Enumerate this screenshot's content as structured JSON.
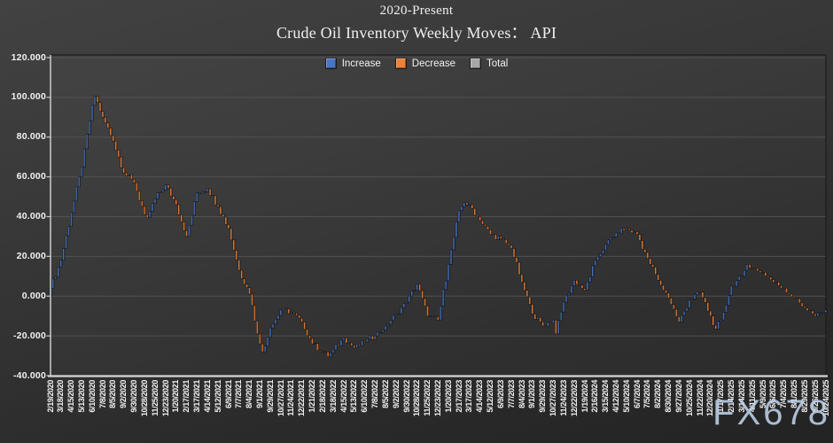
{
  "watermark": {
    "text": "FX678",
    "color": "#bed2ea"
  },
  "chart_data": {
    "type": "waterfall",
    "title": "2020-Present",
    "subtitle": "Crude Oil Inventory Weekly Moves： API",
    "legend": [
      {
        "name": "increase",
        "label": "Increase",
        "color": "#4472c4"
      },
      {
        "name": "decrease",
        "label": "Decrease",
        "color": "#ed7d31"
      },
      {
        "name": "total",
        "label": "Total",
        "color": "#a5a5a5"
      }
    ],
    "bar_colors": {
      "increase": "#4472c4",
      "decrease": "#ed7d31"
    },
    "y_axis": {
      "min": -40,
      "max": 120,
      "step": 20,
      "tick_labels": [
        "120.000",
        "100.000",
        "80.000",
        "60.000",
        "40.000",
        "20.000",
        "0.000",
        "-20.000",
        "-40.000"
      ],
      "grid": true
    },
    "x_axis_note": "weekly waterfall bars; one tick label every 4 weeks",
    "weeks_between_labels": 4,
    "baseline": 0,
    "x_tick_labels": [
      "2/19/2020",
      "3/18/2020",
      "4/15/2020",
      "5/13/2020",
      "6/10/2020",
      "7/8/2020",
      "8/5/2020",
      "9/2/2020",
      "9/30/2020",
      "10/28/2020",
      "11/25/2020",
      "12/23/2020",
      "1/20/2021",
      "2/17/2021",
      "3/17/2021",
      "4/14/2021",
      "5/12/2021",
      "6/9/2021",
      "7/7/2021",
      "8/4/2021",
      "9/1/2021",
      "9/29/2021",
      "10/27/2021",
      "11/24/2021",
      "12/22/2021",
      "1/21/2022",
      "2/18/2022",
      "3/18/2022",
      "4/15/2022",
      "5/13/2022",
      "6/10/2022",
      "7/8/2022",
      "8/5/2022",
      "9/2/2022",
      "9/30/2022",
      "10/28/2022",
      "11/25/2022",
      "12/23/2022",
      "1/20/2023",
      "2/17/2023",
      "3/17/2023",
      "4/14/2023",
      "5/12/2023",
      "6/9/2023",
      "7/7/2023",
      "8/4/2023",
      "9/1/2023",
      "9/29/2023",
      "10/27/2023",
      "11/24/2023",
      "12/22/2023",
      "1/19/2024",
      "2/16/2024",
      "3/15/2024",
      "4/12/2024",
      "5/10/2024",
      "6/7/2024",
      "7/5/2024",
      "8/2/2024",
      "8/30/2024",
      "9/27/2024",
      "10/25/2024",
      "11/22/2024",
      "12/20/2024",
      "1/17/2025",
      "2/14/2025",
      "3/14/2025",
      "4/11/2025",
      "5/9/2025",
      "6/6/2025",
      "7/4/2025",
      "8/1/2025",
      "8/29/2025",
      "9/26/2025",
      "10/24/2025"
    ],
    "cumulative_at_ticks": [
      4,
      18,
      42,
      65,
      96,
      90,
      78,
      62,
      57,
      41,
      49,
      56,
      46,
      30,
      52,
      54,
      45,
      34,
      13,
      1,
      -24,
      -16,
      -7,
      -8,
      -13,
      -24,
      -28,
      -27,
      -21,
      -26,
      -23,
      -20,
      -15,
      -9,
      -3,
      6,
      -10,
      -12,
      16,
      43,
      46,
      38,
      31,
      29,
      24,
      7,
      -9,
      -15,
      -12,
      -3,
      8,
      3,
      18,
      26,
      32,
      34,
      31,
      19,
      8,
      -1,
      -13,
      -2,
      2,
      -10,
      -12,
      5,
      10,
      14,
      12,
      7,
      4,
      -1,
      -6,
      -10,
      -7
    ],
    "notable_extremes": [
      {
        "week": 17,
        "near": "6/17/2020",
        "value": 100.5
      },
      {
        "week": 37,
        "near": "11/4/2020",
        "value": 39.5
      },
      {
        "week": 81,
        "near": "9/8/2021",
        "value": -28
      },
      {
        "week": 106,
        "near": "3/4/2022",
        "value": -30.5
      },
      {
        "week": 158,
        "near": "3/3/2023",
        "value": 47
      },
      {
        "week": 193,
        "near": "11/3/2023",
        "value": -19
      },
      {
        "week": 254,
        "near": "1/3/2025",
        "value": -16.5
      },
      {
        "week": 266,
        "near": "3/28/2025",
        "value": 16
      }
    ]
  }
}
